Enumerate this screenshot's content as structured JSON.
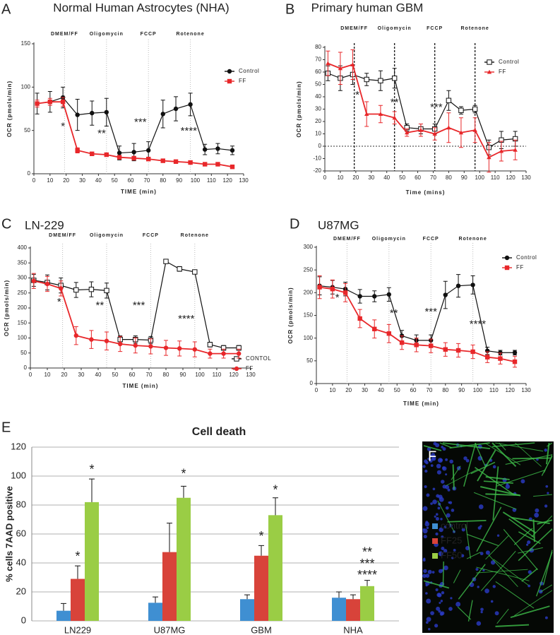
{
  "chart_data": [
    {
      "type": "line",
      "panel": "A",
      "title": "Normal Human Astrocytes (NHA)",
      "x_label": "TIME (min)",
      "y_label": "OCR (pmols/min)",
      "x": [
        2,
        10,
        18,
        27,
        36,
        45,
        53,
        62,
        71,
        80,
        88,
        97,
        106,
        114,
        123
      ],
      "xlim": [
        0,
        130
      ],
      "xticks": [
        0,
        10,
        20,
        30,
        40,
        50,
        60,
        70,
        80,
        90,
        100,
        110,
        120,
        130
      ],
      "ylim": [
        0,
        150
      ],
      "yticks": [
        0,
        50,
        100,
        150
      ],
      "phases": [
        {
          "label": "DMEM/FF",
          "x": 19
        },
        {
          "label": "Oligomycin",
          "x": 45
        },
        {
          "label": "FCCP",
          "x": 71
        },
        {
          "label": "Rotenone",
          "x": 97
        }
      ],
      "annotations": [
        "*",
        "**",
        "***",
        "****"
      ],
      "series": [
        {
          "name": "Control",
          "color": "#111111",
          "marker": "circle",
          "values": [
            81,
            83,
            88,
            68,
            70,
            71,
            24,
            25,
            27,
            69,
            75,
            80,
            28,
            29,
            27
          ],
          "errors": [
            12,
            12,
            12,
            18,
            14,
            16,
            8,
            10,
            10,
            16,
            14,
            13,
            6,
            6,
            5
          ]
        },
        {
          "name": "FF",
          "color": "#e8272a",
          "marker": "square",
          "values": [
            81,
            83,
            83,
            27,
            23,
            22,
            19,
            18,
            17,
            15,
            14,
            13,
            11,
            11,
            8
          ],
          "errors": [
            4,
            4,
            5,
            3,
            2,
            2,
            2,
            2,
            2,
            2,
            2,
            2,
            2,
            2,
            2
          ]
        }
      ]
    },
    {
      "type": "line",
      "panel": "B",
      "title": "Primary human GBM",
      "x_label": "Time (mins)",
      "y_label": "OCR (pmols/min)",
      "x": [
        2,
        10,
        18,
        27,
        36,
        45,
        53,
        62,
        71,
        80,
        88,
        97,
        106,
        114,
        123
      ],
      "xlim": [
        0,
        130
      ],
      "xticks": [
        0,
        10,
        20,
        30,
        40,
        50,
        60,
        70,
        80,
        90,
        100,
        110,
        120,
        130
      ],
      "ylim": [
        -20,
        80
      ],
      "yticks": [
        -20,
        -10,
        0,
        10,
        20,
        30,
        40,
        50,
        60,
        70,
        80
      ],
      "zero_line": true,
      "phases": [
        {
          "label": "DMEM/FF",
          "x": 19
        },
        {
          "label": "Oligomycin",
          "x": 45
        },
        {
          "label": "FCCP",
          "x": 71
        },
        {
          "label": "Rotenone",
          "x": 97
        }
      ],
      "annotations": [
        "*",
        "**",
        "***"
      ],
      "series": [
        {
          "name": "Control",
          "color": "#111111",
          "marker": "open-square",
          "values": [
            59,
            55,
            58,
            54,
            53,
            55,
            15,
            14,
            14,
            37,
            29,
            30,
            -1,
            5,
            6
          ],
          "errors": [
            6,
            10,
            8,
            5,
            8,
            8,
            3,
            4,
            4,
            8,
            3,
            3,
            6,
            7,
            6
          ]
        },
        {
          "name": "FF",
          "color": "#e8272a",
          "marker": "triangle",
          "values": [
            67,
            63,
            66,
            26,
            26,
            23,
            11,
            13,
            10,
            15,
            11,
            13,
            -9,
            -4,
            -3
          ],
          "errors": [
            10,
            13,
            12,
            10,
            7,
            5,
            3,
            5,
            5,
            12,
            12,
            10,
            12,
            8,
            8
          ]
        }
      ]
    },
    {
      "type": "line",
      "panel": "C",
      "title": "LN-229",
      "x_label": "TIME (min)",
      "y_label": "OCR (pmols/min)",
      "x": [
        2,
        10,
        18,
        27,
        36,
        45,
        53,
        62,
        71,
        80,
        88,
        97,
        106,
        114,
        123
      ],
      "xlim": [
        0,
        130
      ],
      "xticks": [
        0,
        10,
        20,
        30,
        40,
        50,
        60,
        70,
        80,
        90,
        100,
        110,
        120,
        130
      ],
      "ylim": [
        0,
        400
      ],
      "yticks": [
        0,
        50,
        100,
        150,
        200,
        250,
        300,
        350,
        400
      ],
      "phases": [
        {
          "label": "DMEM/FF",
          "x": 19
        },
        {
          "label": "Oligomycin",
          "x": 45
        },
        {
          "label": "FCCP",
          "x": 71
        },
        {
          "label": "Rotenone",
          "x": 97
        }
      ],
      "annotations": [
        "*",
        "**",
        "***",
        "****"
      ],
      "series": [
        {
          "name": "CONTOL",
          "color": "#111111",
          "marker": "open-square",
          "values": [
            292,
            285,
            275,
            260,
            262,
            258,
            95,
            95,
            93,
            355,
            330,
            320,
            78,
            67,
            67
          ],
          "errors": [
            20,
            25,
            25,
            25,
            25,
            25,
            12,
            12,
            12,
            3,
            8,
            5,
            8,
            8,
            8
          ]
        },
        {
          "name": "FF",
          "color": "#e8272a",
          "marker": "circle",
          "values": [
            290,
            280,
            265,
            108,
            95,
            90,
            80,
            75,
            72,
            67,
            65,
            62,
            48,
            48,
            48
          ],
          "errors": [
            25,
            25,
            25,
            30,
            30,
            30,
            25,
            25,
            25,
            25,
            25,
            25,
            15,
            15,
            15
          ]
        }
      ]
    },
    {
      "type": "line",
      "panel": "D",
      "title": "U87MG",
      "x_label": "TIME (min)",
      "y_label": "OCR (pmols/min)",
      "x": [
        2,
        10,
        18,
        27,
        36,
        45,
        53,
        62,
        71,
        80,
        88,
        97,
        106,
        114,
        123
      ],
      "xlim": [
        0,
        130
      ],
      "xticks": [
        0,
        10,
        20,
        30,
        40,
        50,
        60,
        70,
        80,
        90,
        100,
        110,
        120,
        130
      ],
      "ylim": [
        0,
        300
      ],
      "yticks": [
        0,
        50,
        100,
        150,
        200,
        250,
        300
      ],
      "phases": [
        {
          "label": "DMEM/FF",
          "x": 19
        },
        {
          "label": "Oligomycin",
          "x": 45
        },
        {
          "label": "FCCP",
          "x": 71
        },
        {
          "label": "Rotenone",
          "x": 97
        }
      ],
      "annotations": [
        "*",
        "**",
        "***",
        "****"
      ],
      "series": [
        {
          "name": "Control",
          "color": "#111111",
          "marker": "circle",
          "values": [
            215,
            212,
            208,
            192,
            192,
            196,
            105,
            95,
            95,
            195,
            215,
            217,
            72,
            68,
            68
          ],
          "errors": [
            20,
            15,
            15,
            15,
            12,
            15,
            12,
            12,
            12,
            30,
            25,
            20,
            8,
            5,
            5
          ]
        },
        {
          "name": "FF",
          "color": "#e8272a",
          "marker": "square",
          "values": [
            212,
            208,
            200,
            143,
            120,
            110,
            90,
            85,
            83,
            75,
            73,
            70,
            58,
            55,
            48
          ],
          "errors": [
            25,
            20,
            20,
            20,
            20,
            20,
            15,
            15,
            15,
            15,
            15,
            15,
            12,
            12,
            12
          ]
        }
      ]
    },
    {
      "type": "bar",
      "panel": "E",
      "title": "Cell death",
      "y_label": "% cells 7AAD positive",
      "categories": [
        "LN229",
        "U87MG",
        "GBM",
        "NHA"
      ],
      "ylim": [
        0,
        120
      ],
      "yticks": [
        0,
        20,
        40,
        60,
        80,
        100,
        120
      ],
      "grid": true,
      "annotations": [
        "*",
        "*",
        "*",
        "*",
        "*",
        "**",
        "***",
        "****"
      ],
      "series": [
        {
          "name": "control",
          "color": "#3f8fd2",
          "values": [
            7,
            12.5,
            15,
            16
          ],
          "errors": [
            5,
            4,
            3,
            4
          ]
        },
        {
          "name": "FF25",
          "color": "#d8433a",
          "values": [
            29,
            47.5,
            45,
            15
          ],
          "errors": [
            9,
            20,
            7,
            3
          ]
        },
        {
          "name": "FF50",
          "color": "#9acd45",
          "values": [
            82,
            85,
            73,
            24
          ],
          "errors": [
            16,
            8,
            12,
            4
          ]
        }
      ]
    }
  ],
  "image_panel": {
    "label": "F"
  }
}
